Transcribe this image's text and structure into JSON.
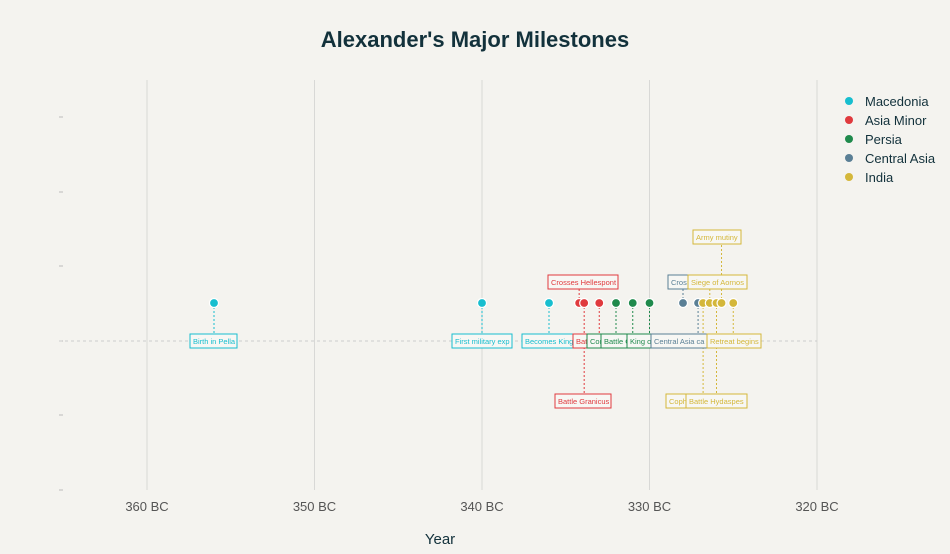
{
  "chart_data": {
    "type": "scatter",
    "title": "Alexander's Major Milestones",
    "xlabel": "Year",
    "ylabel": "",
    "xlim": [
      365,
      318
    ],
    "x_ticks": [
      360,
      350,
      340,
      330,
      320
    ],
    "x_tick_labels": [
      "360 BC",
      "350 BC",
      "340 BC",
      "330 BC",
      "320 BC"
    ],
    "grid": true,
    "legend_position": "top-right",
    "legend": [
      {
        "name": "Macedonia",
        "color": "#17becf"
      },
      {
        "name": "Asia Minor",
        "color": "#e03a3e"
      },
      {
        "name": "Persia",
        "color": "#1f8a4c"
      },
      {
        "name": "Central Asia",
        "color": "#5a7f95"
      },
      {
        "name": "India",
        "color": "#d4b73a"
      }
    ],
    "events": [
      {
        "year": 356,
        "region": 0,
        "label": "Birth in Pella"
      },
      {
        "year": 340,
        "region": 0,
        "label": "First military exp"
      },
      {
        "year": 336,
        "region": 0,
        "label": "Becomes King"
      },
      {
        "year": 334.2,
        "region": 1,
        "label": "Crosses Hellespont"
      },
      {
        "year": 333.9,
        "region": 1,
        "label": "Battle Granicus"
      },
      {
        "year": 333,
        "region": 1,
        "label": "Bat"
      },
      {
        "year": 332,
        "region": 2,
        "label": "Con"
      },
      {
        "year": 331,
        "region": 2,
        "label": "Battle G"
      },
      {
        "year": 330,
        "region": 2,
        "label": "King o"
      },
      {
        "year": 328,
        "region": 3,
        "label": "Cros"
      },
      {
        "year": 327.1,
        "region": 3,
        "label": "Central Asia ca"
      },
      {
        "year": 326.8,
        "region": 4,
        "label": "Coph"
      },
      {
        "year": 326.4,
        "region": 4,
        "label": "Siege of Aornos"
      },
      {
        "year": 326,
        "region": 4,
        "label": "Battle Hydaspes"
      },
      {
        "year": 325.7,
        "region": 4,
        "label": "Army mutiny"
      },
      {
        "year": 325,
        "region": 4,
        "label": "Retreat begins"
      }
    ]
  }
}
